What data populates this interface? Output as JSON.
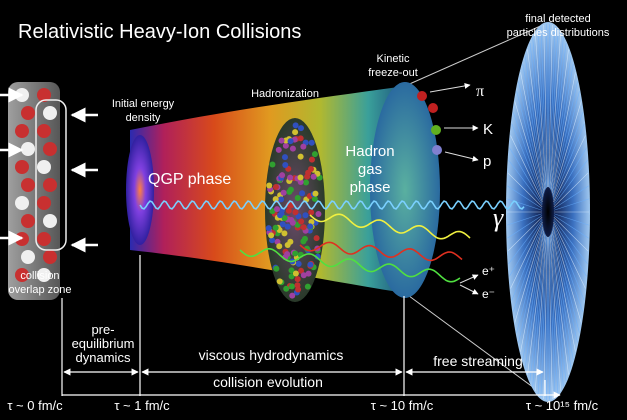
{
  "header": {
    "title": "Relativistic Heavy-Ion Collisions"
  },
  "labels": {
    "final_detected": [
      "final detected",
      "particles distributions"
    ],
    "kinetic_freeze_out": [
      "Kinetic",
      "freeze-out"
    ],
    "hadronization": "Hadronization",
    "initial_energy_density": [
      "Initial energy",
      "density"
    ],
    "qgp_phase": "QGP phase",
    "hadron_gas_phase": [
      "Hadron",
      "gas",
      "phase"
    ],
    "collision_overlap_zone": [
      "collision",
      "overlap zone"
    ]
  },
  "particles": [
    "π",
    "K",
    "p",
    "γ",
    "e⁺",
    "e⁻"
  ],
  "timeline": {
    "pre_equilibrium": [
      "pre-",
      "equilibrium",
      "dynamics"
    ],
    "viscous_hydrodynamics": "viscous hydrodynamics",
    "free_streaming": "free streaming",
    "collision_evolution": "collision evolution",
    "times": [
      "τ ~ 0 fm/c",
      "τ ~ 1 fm/c",
      "τ ~ 10 fm/c",
      "τ ~ 10¹⁵ fm/c"
    ]
  }
}
